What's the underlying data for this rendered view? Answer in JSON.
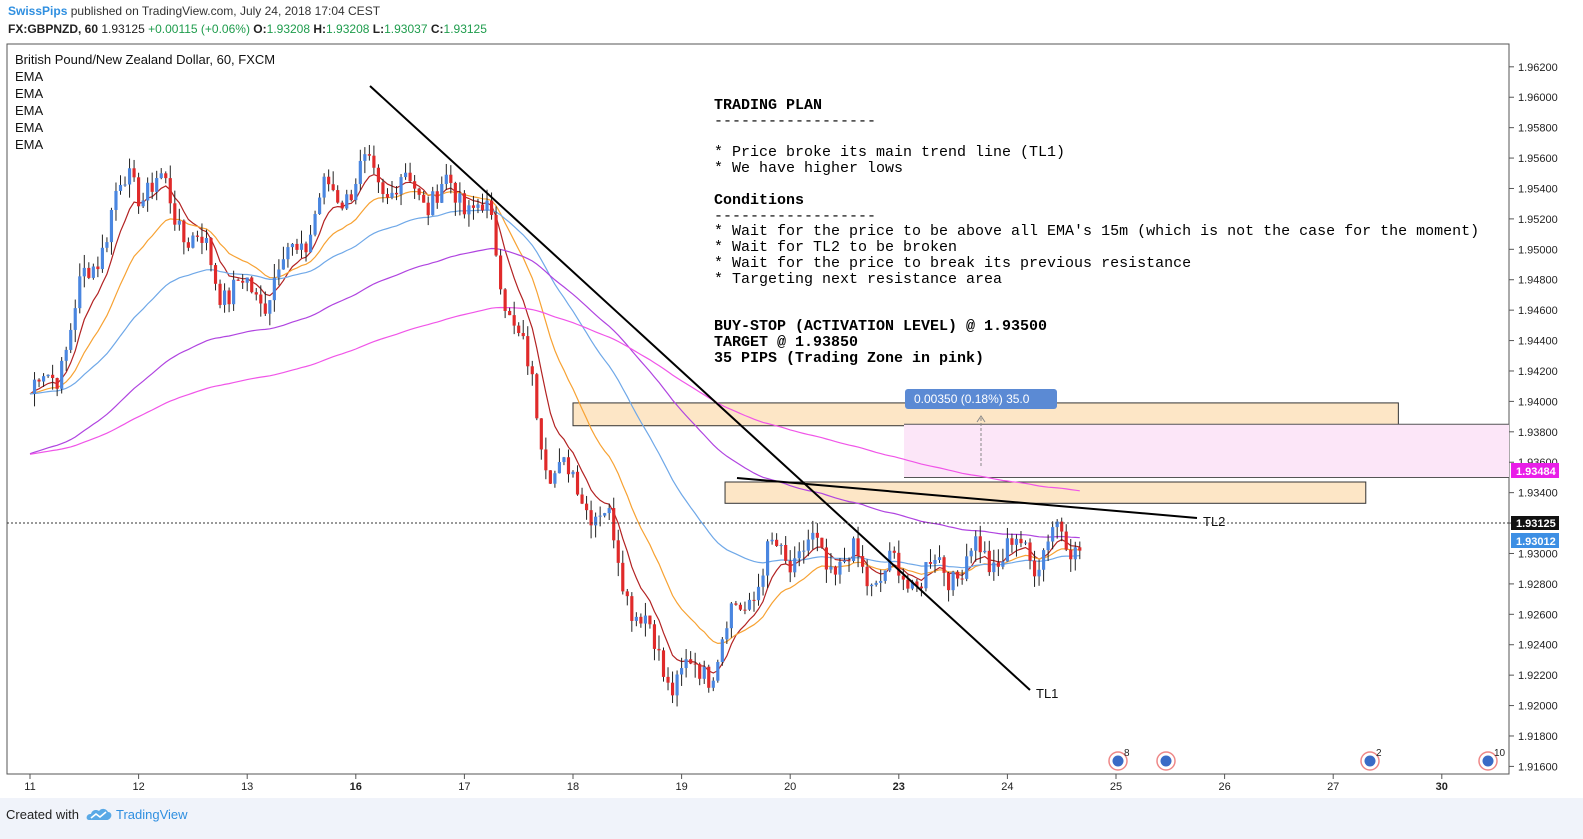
{
  "header": {
    "user": "SwissPips",
    "published": "published on TradingView.com, July 24, 2018 17:04 CEST",
    "symbol": "FX:GBPNZD, 60",
    "last": "1.93125",
    "change": "+0.00115 (+0.06%)",
    "o_label": "O:",
    "o_val": "1.93208",
    "h_label": "H:",
    "h_val": "1.93208",
    "l_label": "L:",
    "l_val": "1.93037",
    "c_label": "C:",
    "c_val": "1.93125"
  },
  "legend": {
    "title": "British Pound/New Zealand Dollar, 60, FXCM",
    "indicators": [
      "EMA",
      "EMA",
      "EMA",
      "EMA",
      "EMA"
    ]
  },
  "plan": {
    "lines": [
      "TRADING PLAN",
      "------------------",
      "",
      "* Price broke its main trend line (TL1)",
      "* We have higher lows",
      "",
      "Conditions",
      "------------------",
      "* Wait for the price to be above all EMA's 15m (which is not the case for the moment)",
      "* Wait for TL2 to be broken",
      "* Wait for the price to break its previous resistance",
      "* Targeting next resistance area",
      "",
      "",
      "BUY-STOP (ACTIVATION LEVEL) @ 1.93500",
      "TARGET @ 1.93850",
      "35 PIPS (Trading Zone in pink)"
    ]
  },
  "measure_label": "0.00350 (0.18%) 35.0",
  "trendlines": {
    "tl1": "TL1",
    "tl2": "TL2"
  },
  "price_badges": {
    "upper": "1.93484",
    "current": "1.93125",
    "lower": "1.93012"
  },
  "event_counts": [
    "8",
    "2",
    "10"
  ],
  "footer": {
    "created": "Created with",
    "brand": "TradingView"
  },
  "colors": {
    "up": "#4a86e0",
    "down": "#e02a2a",
    "ema_fast": "#b22222",
    "ema_orange": "#f7a233",
    "ema_blue": "#6fa8e8",
    "ema_purple": "#b044e0",
    "ema_magenta": "#f055e8",
    "zone_orange": "#fde6c6",
    "zone_pink": "#fce6f8",
    "accent": "#2f8fe0"
  },
  "chart_data": {
    "type": "candlestick",
    "symbol": "FX:GBPNZD",
    "interval": "60",
    "ylim": [
      1.9155,
      1.9635
    ],
    "y_ticks": [
      1.962,
      1.96,
      1.958,
      1.956,
      1.954,
      1.952,
      1.95,
      1.948,
      1.946,
      1.944,
      1.942,
      1.94,
      1.938,
      1.936,
      1.934,
      1.932,
      1.93,
      1.928,
      1.926,
      1.924,
      1.922,
      1.92,
      1.918,
      1.916
    ],
    "y_tick_labels": [
      "1.96200",
      "1.96000",
      "1.95800",
      "1.95600",
      "1.95400",
      "1.95200",
      "1.95000",
      "1.94800",
      "1.94600",
      "1.94400",
      "1.94200",
      "1.94000",
      "1.93800",
      "1.93600",
      "1.93400",
      "1.93200",
      "1.93000",
      "1.92800",
      "1.92600",
      "1.92400",
      "1.92200",
      "1.92000",
      "1.91800",
      "1.91600"
    ],
    "x_labels": [
      "11",
      "12",
      "13",
      "16",
      "17",
      "18",
      "19",
      "20",
      "23",
      "24",
      "25",
      "26",
      "27",
      "30"
    ],
    "x_label_index": [
      0,
      1,
      2,
      3,
      4,
      5,
      6,
      7,
      8,
      9,
      10,
      11,
      12,
      13
    ],
    "day_anchors": [
      {
        "day": 0,
        "close": 1.9405
      },
      {
        "day": 1,
        "close": 1.9545
      },
      {
        "day": 2,
        "close": 1.947
      },
      {
        "day": 3,
        "close": 1.9545
      },
      {
        "day": 4,
        "close": 1.9535
      },
      {
        "day": 5,
        "close": 1.9345
      },
      {
        "day": 6,
        "close": 1.9218
      },
      {
        "day": 7,
        "close": 1.93
      },
      {
        "day": 8,
        "close": 1.9285
      },
      {
        "day": 9,
        "close": 1.93
      },
      {
        "day": 9.7,
        "close": 1.93125
      }
    ],
    "key_points": [
      {
        "label": "high",
        "x": 3.1,
        "y": 1.9575
      },
      {
        "label": "drop",
        "x": 4.2,
        "y": 1.939
      },
      {
        "label": "low",
        "x": 6.8,
        "y": 1.9205
      },
      {
        "label": "last",
        "x": 9.7,
        "y": 1.93125
      }
    ],
    "trend_lines": [
      {
        "name": "TL1",
        "from": [
          3.1,
          1.9612
        ],
        "to": [
          9.2,
          1.9195
        ]
      },
      {
        "name": "TL2",
        "from": [
          6.5,
          1.9344
        ],
        "to": [
          10.7,
          1.932
        ]
      }
    ],
    "zones": [
      {
        "name": "resistance-upper",
        "from_x": 5.0,
        "to_x": 12.6,
        "y1": 1.9384,
        "y2": 1.9399,
        "color": "orange"
      },
      {
        "name": "resistance-lower",
        "from_x": 6.4,
        "to_x": 12.3,
        "y1": 1.9333,
        "y2": 1.9347,
        "color": "orange"
      },
      {
        "name": "trading-zone",
        "from_x": 7.9,
        "to_x": 13.7,
        "y1": 1.935,
        "y2": 1.9385,
        "color": "pink"
      }
    ],
    "levels": {
      "buy_stop": 1.935,
      "target": 1.9385,
      "last": 1.93125,
      "ema_low": 1.93012,
      "ema_high": 1.93484
    },
    "series": [
      {
        "type": "ema",
        "color": "ema_fast"
      },
      {
        "type": "ema",
        "color": "ema_orange"
      },
      {
        "type": "ema",
        "color": "ema_blue"
      },
      {
        "type": "ema",
        "color": "ema_purple"
      },
      {
        "type": "ema",
        "color": "ema_magenta"
      }
    ]
  }
}
